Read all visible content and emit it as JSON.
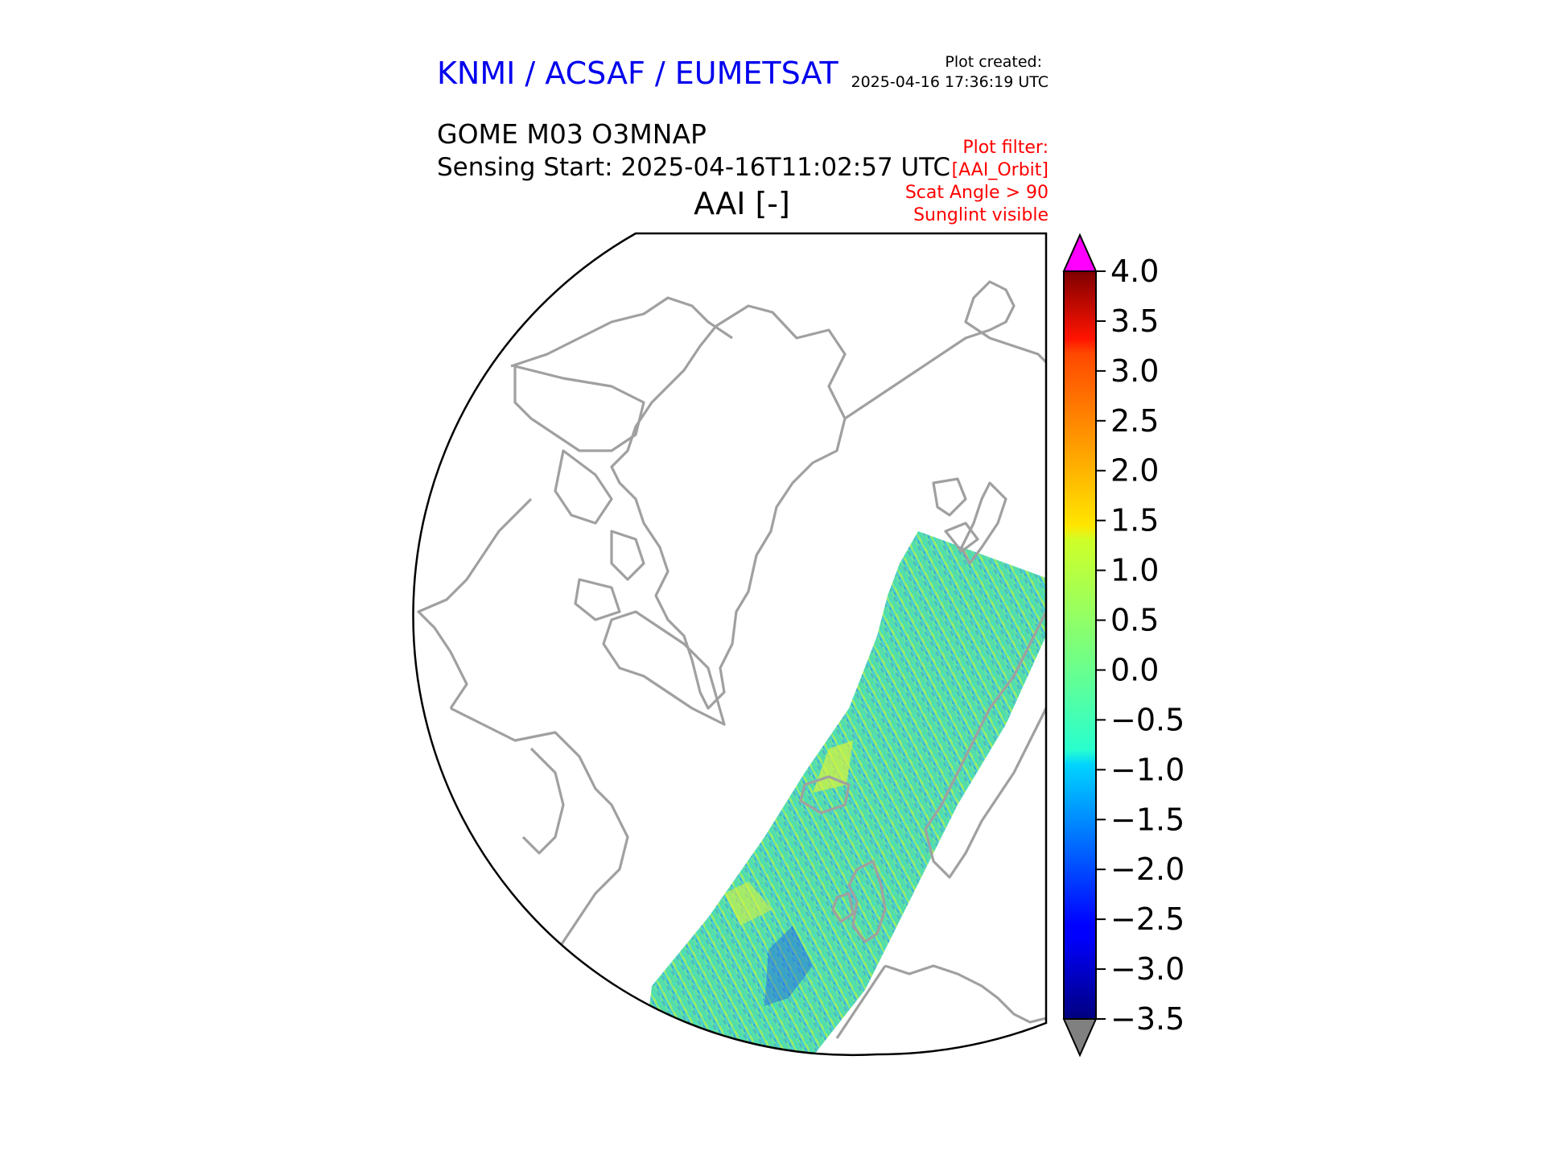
{
  "header": {
    "organization": "KNMI / ACSAF / EUMETSAT",
    "plot_created_label": "Plot created:",
    "plot_created_time": "2025-04-16 17:36:19 UTC",
    "product": "GOME M03 O3MNAP",
    "sensing_start": "Sensing Start: 2025-04-16T11:02:57 UTC",
    "filter_title": "Plot filter:",
    "filter_lines": [
      "[AAI_Orbit]",
      "Scat Angle > 90",
      "Sunglint visible"
    ]
  },
  "colors": {
    "org_title": "#0000ee",
    "filter_text": "#ff0000",
    "coastline": "#a0a0a0",
    "over_color": "#ff00ff",
    "under_color": "#808080"
  },
  "chart_data": {
    "type": "heatmap",
    "title": "AAI [-]",
    "variable": "AAI",
    "units": "-",
    "projection": "north polar stereographic",
    "colormap": "jet",
    "vmin": -3.5,
    "vmax": 4.0,
    "extend": "both",
    "colorbar_ticks": [
      4.0,
      3.5,
      3.0,
      2.5,
      2.0,
      1.5,
      1.0,
      0.5,
      0.0,
      -0.5,
      -1.0,
      -1.5,
      -2.0,
      -2.5,
      -3.0,
      -3.5
    ],
    "colorbar_tick_labels": [
      "4.0",
      "3.5",
      "3.0",
      "2.5",
      "2.0",
      "1.5",
      "1.0",
      "0.5",
      "0.0",
      "−0.5",
      "−1.0",
      "−1.5",
      "−2.0",
      "−2.5",
      "−3.0",
      "−3.5"
    ],
    "swath_typical_range": [
      -2.0,
      1.0
    ]
  }
}
